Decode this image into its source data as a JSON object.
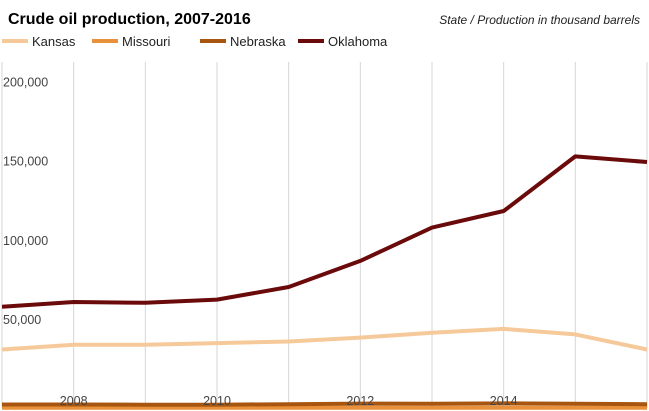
{
  "chart_data": {
    "type": "line",
    "title": "Crude oil production, 2007-2016",
    "subtitle": "State / Production in thousand barrels",
    "xlabel": "",
    "ylabel": "",
    "x": [
      2007,
      2008,
      2009,
      2010,
      2011,
      2012,
      2013,
      2014,
      2015,
      2016
    ],
    "x_ticks": [
      2008,
      2010,
      2012,
      2014
    ],
    "y_ticks": [
      50000,
      100000,
      150000,
      200000
    ],
    "y_tick_labels": [
      "50,000",
      "100,000",
      "150,000",
      "200,000"
    ],
    "xlim": [
      2007,
      2016
    ],
    "ylim": [
      0,
      225000
    ],
    "grid": "vertical",
    "legend_position": "top-left",
    "series": [
      {
        "name": "Kansas",
        "color": "#f6c99a",
        "values": [
          37000,
          40000,
          40000,
          41000,
          42000,
          44500,
          47500,
          50000,
          46500,
          37000
        ]
      },
      {
        "name": "Missouri",
        "color": "#e8913a",
        "values": [
          200,
          200,
          200,
          200,
          200,
          200,
          200,
          200,
          200,
          200
        ]
      },
      {
        "name": "Nebraska",
        "color": "#a8560f",
        "values": [
          2200,
          2200,
          2100,
          2100,
          2400,
          2800,
          2700,
          2900,
          2700,
          2400
        ]
      },
      {
        "name": "Oklahoma",
        "color": "#6b0a0a",
        "values": [
          64000,
          67000,
          66500,
          68500,
          76500,
          93000,
          114000,
          124500,
          159000,
          155500
        ]
      }
    ]
  }
}
